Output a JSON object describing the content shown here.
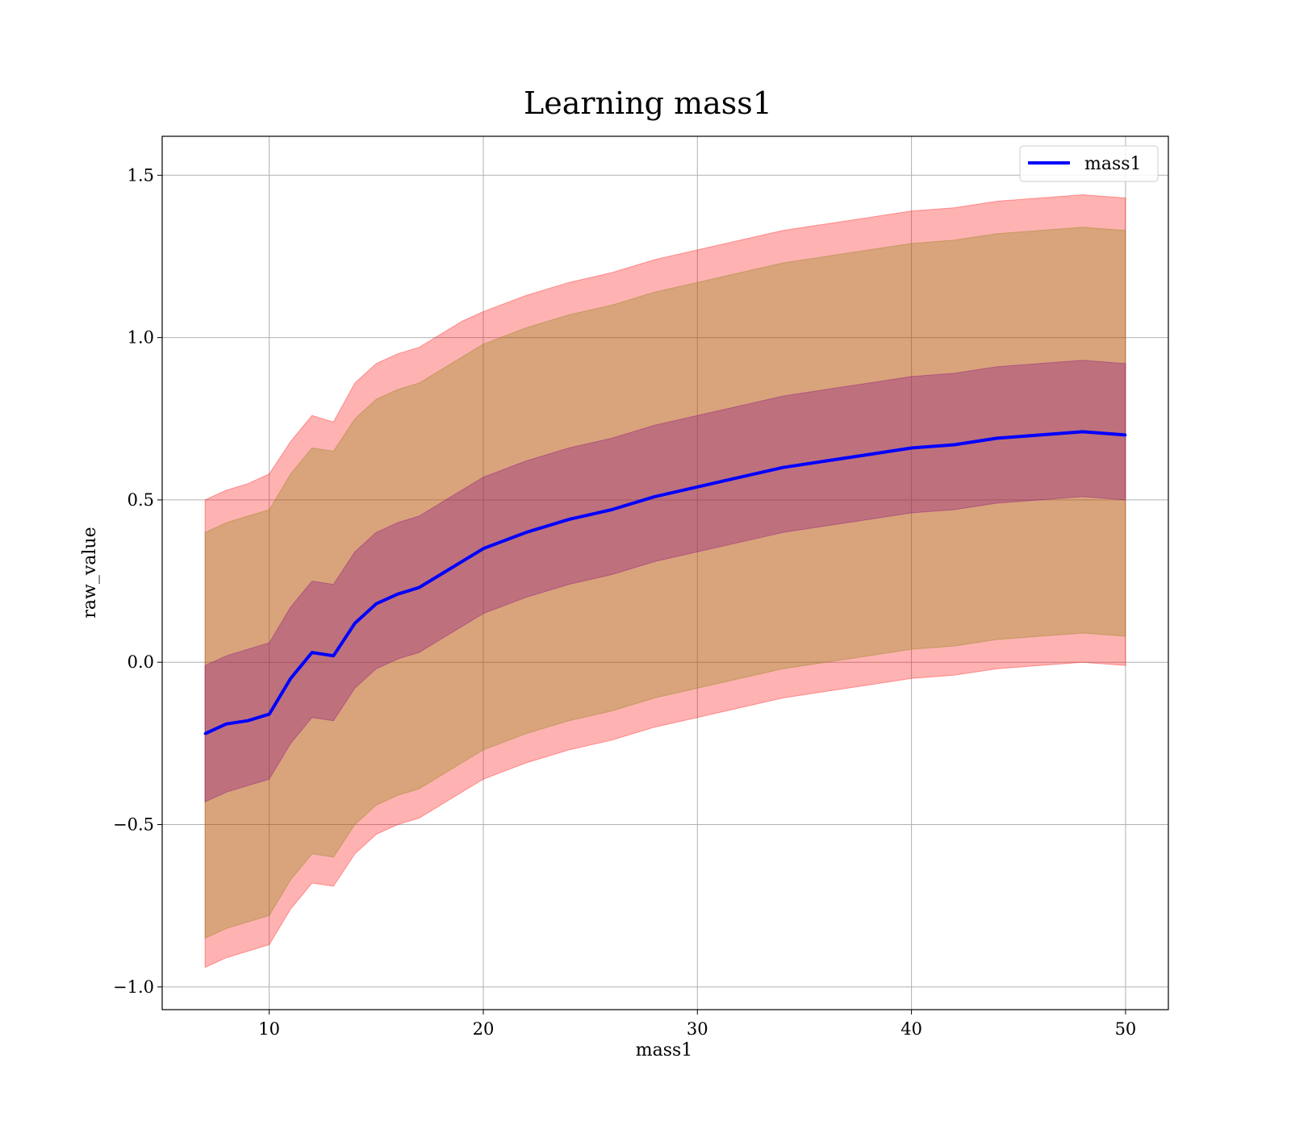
{
  "chart_data": {
    "type": "line",
    "title": "Learning mass1",
    "xlabel": "mass1",
    "ylabel": "raw_value",
    "xlim": [
      5,
      52
    ],
    "ylim": [
      -1.07,
      1.62
    ],
    "xticks": [
      10,
      20,
      30,
      40,
      50
    ],
    "yticks": [
      -1.0,
      -0.5,
      0.0,
      0.5,
      1.0,
      1.5
    ],
    "xtick_labels": [
      "10",
      "20",
      "30",
      "40",
      "50"
    ],
    "ytick_labels": [
      "−1.0",
      "−0.5",
      "0.0",
      "0.5",
      "1.0",
      "1.5"
    ],
    "grid": true,
    "legend_position": "upper-right",
    "legend": [
      "mass1"
    ],
    "series": [
      {
        "name": "mass1",
        "color": "#0000ff",
        "x": [
          7,
          8,
          9,
          10,
          11,
          12,
          13,
          14,
          15,
          16,
          17,
          18,
          19,
          20,
          22,
          24,
          26,
          28,
          30,
          32,
          34,
          36,
          38,
          40,
          42,
          44,
          46,
          48,
          50
        ],
        "values": [
          -0.22,
          -0.19,
          -0.18,
          -0.16,
          -0.05,
          0.03,
          0.02,
          0.12,
          0.18,
          0.21,
          0.23,
          0.27,
          0.31,
          0.35,
          0.4,
          0.44,
          0.47,
          0.51,
          0.54,
          0.57,
          0.6,
          0.62,
          0.64,
          0.66,
          0.67,
          0.69,
          0.7,
          0.71,
          0.7
        ]
      }
    ],
    "bands": [
      {
        "color": "#ff0000",
        "opacity": 0.3,
        "lower": [
          -0.94,
          -0.91,
          -0.89,
          -0.87,
          -0.76,
          -0.68,
          -0.69,
          -0.59,
          -0.53,
          -0.5,
          -0.48,
          -0.44,
          -0.4,
          -0.36,
          -0.31,
          -0.27,
          -0.24,
          -0.2,
          -0.17,
          -0.14,
          -0.11,
          -0.09,
          -0.07,
          -0.05,
          -0.04,
          -0.02,
          -0.01,
          0.0,
          -0.01
        ],
        "upper": [
          0.5,
          0.53,
          0.55,
          0.58,
          0.68,
          0.76,
          0.74,
          0.86,
          0.92,
          0.95,
          0.97,
          1.01,
          1.05,
          1.08,
          1.13,
          1.17,
          1.2,
          1.24,
          1.27,
          1.3,
          1.33,
          1.35,
          1.37,
          1.39,
          1.4,
          1.42,
          1.43,
          1.44,
          1.43
        ]
      },
      {
        "color": "#808000",
        "opacity": 0.3,
        "lower": [
          -0.85,
          -0.82,
          -0.8,
          -0.78,
          -0.67,
          -0.59,
          -0.6,
          -0.5,
          -0.44,
          -0.41,
          -0.39,
          -0.35,
          -0.31,
          -0.27,
          -0.22,
          -0.18,
          -0.15,
          -0.11,
          -0.08,
          -0.05,
          -0.02,
          0.0,
          0.02,
          0.04,
          0.05,
          0.07,
          0.08,
          0.09,
          0.08
        ],
        "upper": [
          0.4,
          0.43,
          0.45,
          0.47,
          0.58,
          0.66,
          0.65,
          0.75,
          0.81,
          0.84,
          0.86,
          0.9,
          0.94,
          0.98,
          1.03,
          1.07,
          1.1,
          1.14,
          1.17,
          1.2,
          1.23,
          1.25,
          1.27,
          1.29,
          1.3,
          1.32,
          1.33,
          1.34,
          1.33
        ]
      },
      {
        "color": "#800080",
        "opacity": 0.3,
        "lower": [
          -0.43,
          -0.4,
          -0.38,
          -0.36,
          -0.25,
          -0.17,
          -0.18,
          -0.08,
          -0.02,
          0.01,
          0.03,
          0.07,
          0.11,
          0.15,
          0.2,
          0.24,
          0.27,
          0.31,
          0.34,
          0.37,
          0.4,
          0.42,
          0.44,
          0.46,
          0.47,
          0.49,
          0.5,
          0.51,
          0.5
        ],
        "upper": [
          -0.01,
          0.02,
          0.04,
          0.06,
          0.17,
          0.25,
          0.24,
          0.34,
          0.4,
          0.43,
          0.45,
          0.49,
          0.53,
          0.57,
          0.62,
          0.66,
          0.69,
          0.73,
          0.76,
          0.79,
          0.82,
          0.84,
          0.86,
          0.88,
          0.89,
          0.91,
          0.92,
          0.93,
          0.92
        ]
      }
    ]
  }
}
